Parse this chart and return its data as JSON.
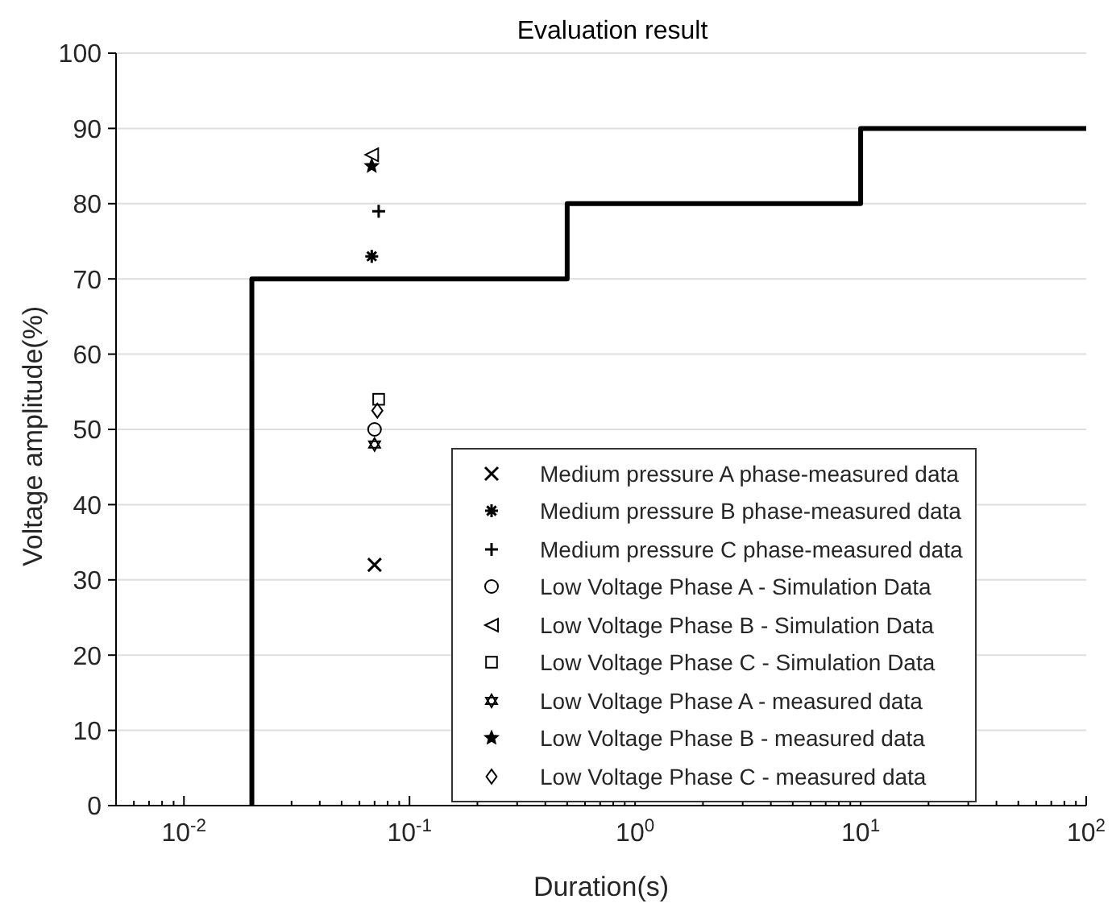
{
  "chart_data": {
    "type": "scatter",
    "title": "Evaluation result",
    "xlabel": "Duration(s)",
    "ylabel": "Voltage amplitude(%)",
    "log": "x",
    "grid": "y",
    "legend": "bottom right",
    "xlim": [
      0.005,
      100
    ],
    "xticks": [
      {
        "value": 0.006,
        "label": null
      },
      {
        "value": 0.007,
        "label": null
      },
      {
        "value": 0.008,
        "label": null
      },
      {
        "value": 0.009,
        "label": null
      },
      {
        "value": 0.01,
        "label": "10$^{-2}$"
      },
      {
        "value": 0.02,
        "label": null
      },
      {
        "value": 0.03,
        "label": null
      },
      {
        "value": 0.04,
        "label": null
      },
      {
        "value": 0.05,
        "label": null
      },
      {
        "value": 0.06,
        "label": null
      },
      {
        "value": 0.07,
        "label": null
      },
      {
        "value": 0.08,
        "label": null
      },
      {
        "value": 0.09,
        "label": null
      },
      {
        "value": 0.1,
        "label": "10$^{-1}$"
      },
      {
        "value": 0.2,
        "label": null
      },
      {
        "value": 0.3,
        "label": null
      },
      {
        "value": 0.4,
        "label": null
      },
      {
        "value": 0.5,
        "label": null
      },
      {
        "value": 0.6,
        "label": null
      },
      {
        "value": 0.7,
        "label": null
      },
      {
        "value": 0.8,
        "label": null
      },
      {
        "value": 0.9,
        "label": null
      },
      {
        "value": 1,
        "label": "10$^{0}$"
      },
      {
        "value": 2,
        "label": null
      },
      {
        "value": 3,
        "label": null
      },
      {
        "value": 4,
        "label": null
      },
      {
        "value": 5,
        "label": null
      },
      {
        "value": 6,
        "label": null
      },
      {
        "value": 7,
        "label": null
      },
      {
        "value": 8,
        "label": null
      },
      {
        "value": 9,
        "label": null
      },
      {
        "value": 10,
        "label": "10$^{1}$"
      },
      {
        "value": 20,
        "label": null
      },
      {
        "value": 30,
        "label": null
      },
      {
        "value": 40,
        "label": null
      },
      {
        "value": 50,
        "label": null
      },
      {
        "value": 60,
        "label": null
      },
      {
        "value": 70,
        "label": null
      },
      {
        "value": 80,
        "label": null
      },
      {
        "value": 90,
        "label": null
      },
      {
        "value": 100,
        "label": "10$^{2}$"
      }
    ],
    "ylim": [
      0,
      100
    ],
    "yticks": [
      0,
      10,
      20,
      30,
      40,
      50,
      60,
      70,
      80,
      90,
      100
    ],
    "series": [
      {
        "type": "line",
        "color": "#000000",
        "x": [
          0.02,
          0.02,
          0.5,
          0.5,
          10,
          10,
          100
        ],
        "values": [
          0,
          70,
          70,
          80,
          80,
          90,
          90
        ]
      },
      {
        "name": "Medium pressure A phase-measured data",
        "color": "#000000",
        "marker": "x",
        "x": [
          0.07
        ],
        "values": [
          32
        ]
      },
      {
        "name": "Medium pressure B phase-measured data",
        "color": "#000000",
        "marker": "cross",
        "x": [
          0.068
        ],
        "values": [
          73
        ]
      },
      {
        "name": "Medium pressure C phase-measured data",
        "color": "#000000",
        "marker": "plus",
        "x": [
          0.073
        ],
        "values": [
          79
        ]
      },
      {
        "name": "Low Voltage Phase A - Simulation Data",
        "color": "#000000",
        "marker": "circle",
        "x": [
          0.07
        ],
        "values": [
          50
        ]
      },
      {
        "name": "Low Voltage Phase B - Simulation Data",
        "color": "#000000",
        "marker": "triangle-left",
        "x": [
          0.068
        ],
        "values": [
          86.5
        ]
      },
      {
        "name": "Low Voltage Phase C - Simulation Data",
        "color": "#000000",
        "marker": "square",
        "x": [
          0.073
        ],
        "values": [
          54
        ]
      },
      {
        "name": "Low Voltage Phase A - measured data",
        "color": "#000000",
        "marker": "triangle",
        "x": [
          0.07
        ],
        "values": [
          48
        ]
      },
      {
        "name": "Low Voltage Phase B - measured data",
        "color": "#000000",
        "marker": "star",
        "x": [
          0.068
        ],
        "values": [
          85
        ]
      },
      {
        "name": "Low Voltage Phase C - measured data",
        "color": "#000000",
        "marker": "diamond",
        "x": [
          0.072
        ],
        "values": [
          52.5
        ]
      }
    ]
  }
}
